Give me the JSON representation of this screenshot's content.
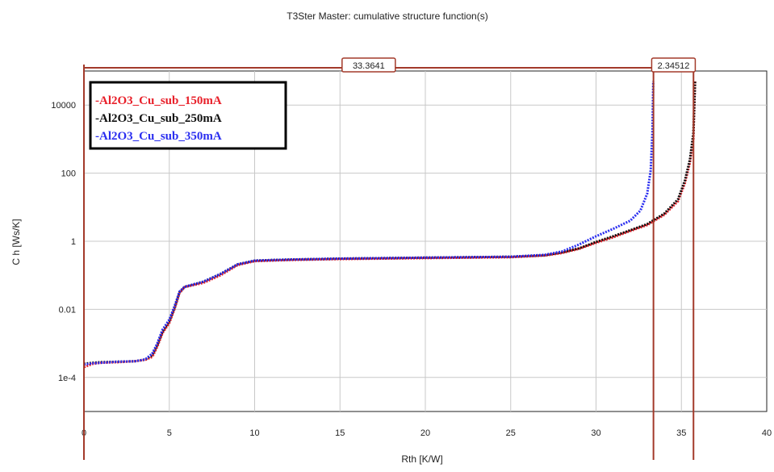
{
  "chart_data": {
    "type": "line",
    "title": "T3Ster Master: cumulative structure function(s)",
    "xlabel": "Rth  [K/W]",
    "ylabel": "C  h   [Ws/K]",
    "xlim": [
      0,
      40
    ],
    "ylim": [
      1e-05,
      100000
    ],
    "y_scale": "log",
    "grid": true,
    "legend_position": "top-left",
    "x_ticks": [
      "0",
      "5",
      "10",
      "15",
      "20",
      "25",
      "30",
      "35",
      "40"
    ],
    "y_ticks": [
      {
        "value": 0.0001,
        "label": "1e-4"
      },
      {
        "value": 0.01,
        "label": "0.01"
      },
      {
        "value": 1,
        "label": "1"
      },
      {
        "value": 100,
        "label": "100"
      },
      {
        "value": 10000,
        "label": "10000"
      }
    ],
    "cursors": {
      "span1_label": "33.3641",
      "span2_label": "2.34512",
      "positions": [
        0,
        33.3641,
        35.7092
      ]
    },
    "series": [
      {
        "name": "-Al2O3_Cu_sub_150mA",
        "color": "#e8202a",
        "x": [
          0,
          0.5,
          1,
          2,
          3,
          3.6,
          4,
          4.3,
          4.6,
          5.0,
          5.3,
          5.6,
          5.9,
          6.3,
          7,
          8,
          9,
          10,
          11,
          12,
          15,
          20,
          25,
          27,
          28,
          29,
          30,
          31,
          32,
          33,
          34,
          34.8,
          35.2,
          35.5,
          35.7,
          35.8
        ],
        "values": [
          0.0002,
          0.00025,
          0.00027,
          0.00028,
          0.0003,
          0.00033,
          0.0004,
          0.0008,
          0.002,
          0.004,
          0.01,
          0.03,
          0.045,
          0.05,
          0.06,
          0.1,
          0.2,
          0.26,
          0.27,
          0.28,
          0.3,
          0.32,
          0.34,
          0.38,
          0.45,
          0.6,
          0.9,
          1.3,
          2,
          3,
          6,
          15,
          50,
          200,
          1000,
          50000
        ]
      },
      {
        "name": "-Al2O3_Cu_sub_250mA",
        "color": "#111111",
        "x": [
          0,
          0.5,
          1,
          2,
          3,
          3.6,
          4,
          4.3,
          4.6,
          5.0,
          5.3,
          5.6,
          5.9,
          6.3,
          7,
          8,
          9,
          10,
          11,
          12,
          15,
          20,
          25,
          27,
          28,
          29,
          30,
          31,
          32,
          33,
          34,
          34.8,
          35.2,
          35.5,
          35.7,
          35.8
        ],
        "values": [
          0.00025,
          0.00027,
          0.00028,
          0.00029,
          0.0003,
          0.00034,
          0.00045,
          0.0009,
          0.0022,
          0.0045,
          0.011,
          0.032,
          0.046,
          0.052,
          0.065,
          0.11,
          0.21,
          0.27,
          0.28,
          0.29,
          0.31,
          0.33,
          0.35,
          0.39,
          0.47,
          0.62,
          0.95,
          1.4,
          2.1,
          3.2,
          6.5,
          17,
          60,
          250,
          1500,
          50000
        ]
      },
      {
        "name": "-Al2O3_Cu_sub_350mA",
        "color": "#2a2ef0",
        "x": [
          0,
          0.5,
          1,
          2,
          3,
          3.6,
          4,
          4.3,
          4.6,
          5.0,
          5.3,
          5.6,
          5.9,
          6.3,
          7,
          8,
          9,
          10,
          11,
          12,
          15,
          20,
          25,
          27,
          28,
          29,
          30,
          31,
          32,
          32.6,
          33.0,
          33.2,
          33.3,
          33.35
        ],
        "values": [
          0.00024,
          0.00026,
          0.00027,
          0.00029,
          0.0003,
          0.00034,
          0.0005,
          0.001,
          0.0025,
          0.005,
          0.012,
          0.033,
          0.046,
          0.052,
          0.065,
          0.11,
          0.21,
          0.27,
          0.28,
          0.29,
          0.31,
          0.33,
          0.35,
          0.4,
          0.5,
          0.8,
          1.4,
          2.3,
          4,
          8,
          25,
          120,
          1500,
          50000
        ]
      }
    ]
  }
}
